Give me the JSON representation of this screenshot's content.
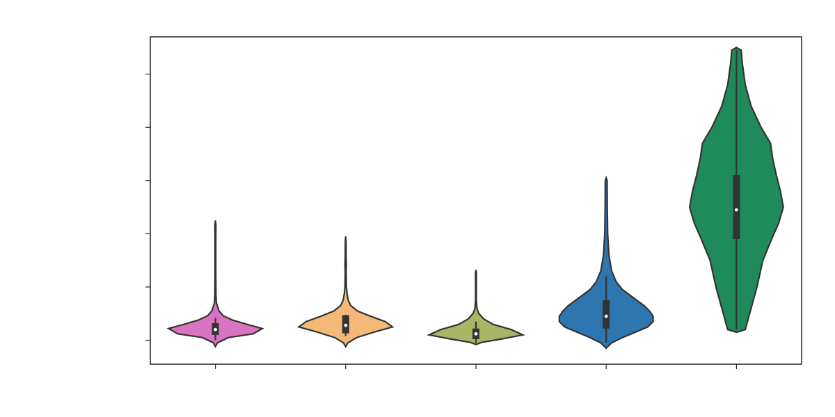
{
  "chart_data": {
    "type": "violin",
    "title": "",
    "xlabel": "",
    "ylabel": "",
    "ylim": [
      -0.45,
      5.7
    ],
    "y_ticks": [
      0,
      1,
      2,
      3,
      4,
      5
    ],
    "grid": false,
    "categories": [
      "",
      "",
      "",
      "",
      ""
    ],
    "series": [
      {
        "color": "#d874c2",
        "median": 0.2,
        "q1": 0.1,
        "q3": 0.32,
        "min": 0.0,
        "max": 0.42,
        "profile": [
          [
            -0.12,
            0.0
          ],
          [
            -0.05,
            0.3
          ],
          [
            0.05,
            2.0
          ],
          [
            0.12,
            5.8
          ],
          [
            0.22,
            7.2
          ],
          [
            0.3,
            4.8
          ],
          [
            0.38,
            2.6
          ],
          [
            0.46,
            1.2
          ],
          [
            0.55,
            0.55
          ],
          [
            0.7,
            0.15
          ],
          [
            0.85,
            0.08
          ],
          [
            1.3,
            0.06
          ],
          [
            1.9,
            0.06
          ],
          [
            2.15,
            0.08
          ],
          [
            2.25,
            0.0
          ]
        ]
      },
      {
        "color": "#f4b877",
        "median": 0.28,
        "q1": 0.13,
        "q3": 0.47,
        "min": 0.08,
        "max": 0.48,
        "profile": [
          [
            -0.12,
            0.0
          ],
          [
            -0.05,
            0.3
          ],
          [
            0.05,
            1.5
          ],
          [
            0.15,
            3.8
          ],
          [
            0.25,
            6.4
          ],
          [
            0.35,
            5.4
          ],
          [
            0.45,
            3.4
          ],
          [
            0.55,
            1.6
          ],
          [
            0.65,
            0.7
          ],
          [
            0.75,
            0.35
          ],
          [
            0.88,
            0.18
          ],
          [
            1.0,
            0.1
          ],
          [
            1.3,
            0.06
          ],
          [
            1.4,
            0.09
          ],
          [
            1.55,
            0.06
          ],
          [
            1.85,
            0.05
          ],
          [
            1.95,
            0.0
          ]
        ]
      },
      {
        "color": "#aab665",
        "median": 0.12,
        "q1": 0.02,
        "q3": 0.22,
        "min": -0.05,
        "max": 0.35,
        "profile": [
          [
            -0.08,
            0.0
          ],
          [
            -0.04,
            0.9
          ],
          [
            0.02,
            3.8
          ],
          [
            0.1,
            7.2
          ],
          [
            0.2,
            5.4
          ],
          [
            0.3,
            2.6
          ],
          [
            0.4,
            1.2
          ],
          [
            0.5,
            0.45
          ],
          [
            0.6,
            0.15
          ],
          [
            0.75,
            0.06
          ],
          [
            1.1,
            0.06
          ],
          [
            1.2,
            0.07
          ],
          [
            1.28,
            0.06
          ],
          [
            1.32,
            0.0
          ]
        ]
      },
      {
        "color": "#2e76b0",
        "median": 0.45,
        "q1": 0.22,
        "q3": 0.75,
        "min": -0.05,
        "max": 1.2,
        "profile": [
          [
            -0.15,
            0.0
          ],
          [
            -0.05,
            0.3
          ],
          [
            0.05,
            0.9
          ],
          [
            0.15,
            1.6
          ],
          [
            0.25,
            2.3
          ],
          [
            0.35,
            2.6
          ],
          [
            0.45,
            2.6
          ],
          [
            0.55,
            2.4
          ],
          [
            0.65,
            2.1
          ],
          [
            0.75,
            1.7
          ],
          [
            0.85,
            1.3
          ],
          [
            0.95,
            0.9
          ],
          [
            1.1,
            0.55
          ],
          [
            1.3,
            0.3
          ],
          [
            1.6,
            0.15
          ],
          [
            2.0,
            0.08
          ],
          [
            2.5,
            0.06
          ],
          [
            3.0,
            0.05
          ],
          [
            3.05,
            0.0
          ]
        ]
      },
      {
        "color": "#1f8a5c",
        "median": 2.45,
        "q1": 1.9,
        "q3": 3.1,
        "min": 0.2,
        "max": 5.45,
        "profile": [
          [
            0.15,
            0.0
          ],
          [
            0.2,
            0.15
          ],
          [
            0.6,
            0.25
          ],
          [
            1.0,
            0.35
          ],
          [
            1.5,
            0.45
          ],
          [
            1.9,
            0.6
          ],
          [
            2.2,
            0.72
          ],
          [
            2.5,
            0.8
          ],
          [
            2.8,
            0.75
          ],
          [
            3.1,
            0.68
          ],
          [
            3.4,
            0.62
          ],
          [
            3.7,
            0.58
          ],
          [
            4.0,
            0.42
          ],
          [
            4.4,
            0.25
          ],
          [
            4.8,
            0.15
          ],
          [
            5.2,
            0.1
          ],
          [
            5.45,
            0.08
          ],
          [
            5.5,
            0.0
          ]
        ]
      }
    ]
  }
}
